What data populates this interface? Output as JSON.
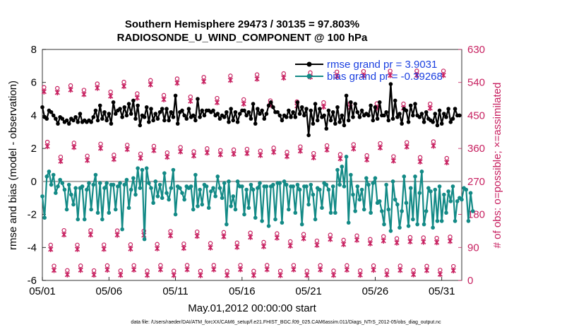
{
  "chart_data": {
    "type": "line",
    "title": "Southern Hemisphere 29473 / 30135 = 97.803%",
    "subtitle": "RADIOSONDE_U_WIND_COMPONENT @ 100 hPa",
    "xlabel": "May.01,2012 00:00:00 start",
    "ylabel": "rmse and bias (model - observation)",
    "ylabel_right": "# of obs: o=possible; ×=assimilated",
    "footnote": "data file: /Users/raeder/DAI/ATM_forcXX/CAM6_setup/f.e21.FHIST_BGC.f09_025.CAM6assim.011/Diags_NTrS_2012-05/obs_diag_output.nc",
    "xlim": [
      0,
      31.5
    ],
    "ylim": [
      -6,
      8
    ],
    "ylim_right": [
      0,
      630
    ],
    "x_ticks": [
      {
        "v": 0,
        "label": "05/01"
      },
      {
        "v": 5,
        "label": "05/06"
      },
      {
        "v": 10,
        "label": "05/11"
      },
      {
        "v": 15,
        "label": "05/16"
      },
      {
        "v": 20,
        "label": "05/21"
      },
      {
        "v": 25,
        "label": "05/26"
      },
      {
        "v": 30,
        "label": "05/31"
      }
    ],
    "y_ticks": [
      {
        "v": -6,
        "label": "-6"
      },
      {
        "v": -4,
        "label": "-4"
      },
      {
        "v": -2,
        "label": "-2"
      },
      {
        "v": 0,
        "label": "0"
      },
      {
        "v": 2,
        "label": "2"
      },
      {
        "v": 4,
        "label": "4"
      },
      {
        "v": 6,
        "label": "6"
      },
      {
        "v": 8,
        "label": "8"
      }
    ],
    "y_right_ticks": [
      {
        "v": 0,
        "label": "0"
      },
      {
        "v": 90,
        "label": "90"
      },
      {
        "v": 180,
        "label": "180"
      },
      {
        "v": 270,
        "label": "270"
      },
      {
        "v": 360,
        "label": "360"
      },
      {
        "v": 450,
        "label": "450"
      },
      {
        "v": 540,
        "label": "540"
      },
      {
        "v": 630,
        "label": "630"
      }
    ],
    "legend": {
      "position": "top-right",
      "entries": [
        "rmse grand pr = 3.9031",
        "bias grand pr = -0.39268"
      ]
    },
    "colors": {
      "rmse": "#000000",
      "bias": "#138a86",
      "obs": "#c71f5f",
      "zero": "#aaaaaa"
    },
    "series": [
      {
        "name": "rmse grand pr = 3.9031",
        "color": "#000000",
        "values": [
          4.5,
          3.9,
          3.8,
          4.3,
          4.2,
          4.0,
          3.8,
          3.5,
          3.9,
          3.8,
          3.6,
          3.7,
          3.5,
          3.8,
          3.7,
          3.9,
          3.6,
          4.1,
          3.6,
          3.7,
          3.6,
          3.7,
          3.6,
          3.9,
          4.3,
          3.7,
          4.6,
          3.8,
          4.2,
          3.7,
          4.1,
          3.5,
          4.8,
          4.1,
          4.3,
          4.4,
          3.9,
          4.5,
          4.0,
          4.7,
          4.1,
          4.9,
          3.8,
          4.6,
          3.4,
          4.0,
          3.9,
          4.5,
          3.6,
          4.4,
          3.7,
          4.1,
          3.8,
          4.2,
          4.4,
          3.7,
          4.4,
          3.7,
          4.2,
          3.9,
          5.2,
          3.5,
          4.2,
          4.3,
          4.0,
          3.8,
          4.4,
          3.9,
          4.0,
          3.7,
          5.0,
          3.9,
          4.3,
          4.0,
          4.3,
          4.3,
          4.2,
          4.3,
          4.0,
          4.1,
          3.8,
          4.0,
          3.9,
          4.2,
          3.6,
          4.4,
          3.7,
          4.2,
          3.6,
          4.1,
          4.3,
          4.3,
          4.0,
          4.2,
          3.8,
          4.7,
          3.5,
          4.4,
          4.1,
          4.3,
          3.8,
          4.1,
          4.6,
          4.8,
          4.5,
          4.2,
          4.2,
          4.0,
          3.7,
          4.0,
          3.9,
          4.3,
          3.9,
          4.2,
          3.9,
          4.8,
          4.1,
          4.5,
          4.0,
          4.4,
          2.8,
          4.3,
          3.5,
          4.7,
          3.7,
          4.4,
          3.9,
          4.0,
          3.2,
          4.3,
          3.7,
          4.2,
          3.5,
          4.5,
          3.6,
          4.0,
          3.4,
          5.2,
          3.7,
          4.8,
          3.9,
          4.7,
          4.2,
          3.9,
          4.3,
          4.0,
          4.1,
          4.0,
          4.6,
          3.7,
          4.5,
          3.8,
          4.8,
          4.0,
          4.0,
          4.2,
          3.7,
          5.9,
          3.8,
          4.9,
          3.9,
          4.1,
          3.5,
          4.4,
          4.3,
          3.6,
          4.6,
          4.0,
          4.7,
          4.0,
          3.9,
          4.1,
          3.6,
          4.2,
          3.8,
          3.7,
          3.6,
          4.1,
          3.4,
          4.3,
          3.5,
          4.1,
          3.9,
          4.4,
          3.6,
          3.8,
          4.4,
          4.0,
          4.0
        ]
      },
      {
        "name": "bias grand pr = -0.39268",
        "color": "#138a86",
        "values": [
          -0.9,
          -2.2,
          0.3,
          0.6,
          -0.2,
          0.4,
          -0.7,
          -0.3,
          0.1,
          -0.1,
          -0.5,
          -1.7,
          -0.2,
          -0.8,
          -1.4,
          -0.4,
          -2.3,
          -0.4,
          -0.3,
          -2.3,
          -0.5,
          -0.1,
          -1.7,
          -0.2,
          0.4,
          -1.9,
          -0.1,
          -2.3,
          -0.4,
          -0.1,
          -1.9,
          -0.2,
          -0.2,
          -1.7,
          -0.3,
          -0.1,
          -2.9,
          -0.2,
          0.1,
          -1.6,
          -0.5,
          0.2,
          -0.8,
          0.8,
          -0.4,
          0.7,
          -3.5,
          0.8,
          -0.1,
          -0.4,
          -1.3,
          0.0,
          -0.9,
          -0.2,
          -1.0,
          0.5,
          -0.7,
          -1.1,
          -0.4,
          0.7,
          -2.0,
          -0.3,
          -0.4,
          -0.7,
          -1.1,
          -0.3,
          -0.4,
          -0.3,
          -1.7,
          0.4,
          -1.5,
          -0.5,
          -1.4,
          -0.2,
          -0.3,
          -1.6,
          -0.6,
          -0.4,
          -0.9,
          0.3,
          -0.4,
          -1.0,
          -0.1,
          -2.6,
          0.0,
          -1.5,
          -0.9,
          -1.7,
          0.0,
          -0.3,
          -0.3,
          -2.0,
          -0.5,
          -1.6,
          -0.2,
          -0.5,
          -2.2,
          -0.4,
          -0.1,
          -2.4,
          -0.3,
          -0.3,
          -2.7,
          -0.3,
          -0.2,
          -2.3,
          -0.1,
          -0.1,
          -2.5,
          0.0,
          -0.2,
          -1.7,
          -0.3,
          -0.3,
          -1.9,
          -0.2,
          -0.5,
          -2.6,
          -0.3,
          -0.3,
          -1.4,
          -0.2,
          -0.8,
          -2.3,
          -0.4,
          -0.5,
          -1.6,
          -0.1,
          -0.2,
          -0.5,
          -1.9,
          -0.3,
          -1.9,
          0.7,
          -0.2,
          0.9,
          -0.3,
          1.5,
          -2.5,
          0.4,
          -0.8,
          -1.8,
          -0.3,
          -1.1,
          -0.5,
          -1.7,
          0.2,
          -0.2,
          -1.9,
          -0.1,
          0.2,
          -1.3,
          -1.2,
          -1.8,
          -2.6,
          -0.2,
          -1.7,
          -3.0,
          0.0,
          -1.1,
          -1.4,
          -2.8,
          -1.8,
          0.3,
          -1.3,
          -2.7,
          -0.4,
          -2.3,
          0.3,
          -2.6,
          -0.7,
          0.6,
          -2.6,
          -1.8,
          -0.4,
          -0.6,
          -2.8,
          -0.5,
          -2.4,
          -0.3,
          -2.4,
          -0.8,
          -1.9,
          -0.6,
          -1.2,
          -0.3,
          -2.4,
          -1.2,
          -1.0,
          -1.1,
          -0.4,
          -0.5,
          -2.4,
          -0.7,
          -1.8
        ]
      }
    ],
    "obs_counts": {
      "note": "each day has 4 synoptic times with counts clustering near ~450-520, ~300-360, ~90-120 and ~15-30",
      "levels": [
        515,
        345,
        105,
        22
      ]
    }
  }
}
